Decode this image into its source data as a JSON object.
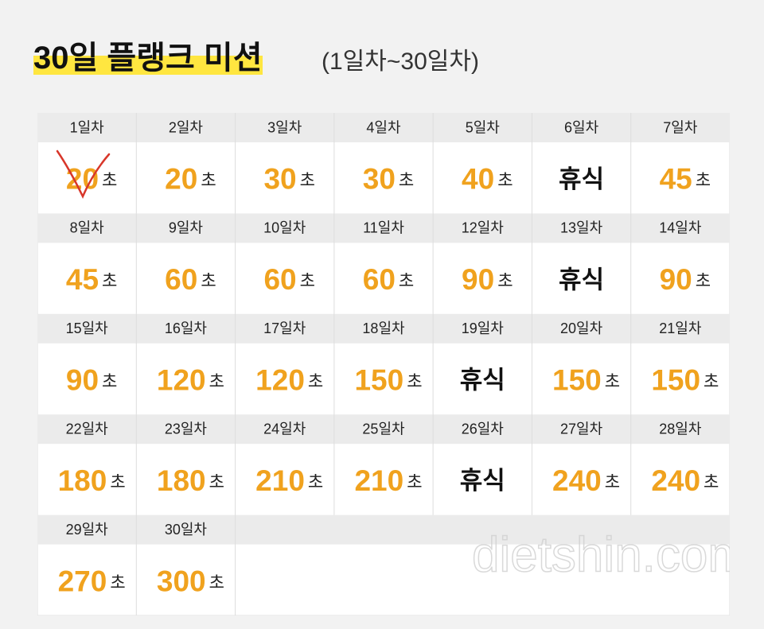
{
  "header": {
    "title": "30일 플랭크 미션",
    "subtitle": "(1일차~30일차)"
  },
  "unit": "초",
  "days": [
    {
      "day": "1일차",
      "amount": 20
    },
    {
      "day": "2일차",
      "amount": 20
    },
    {
      "day": "3일차",
      "amount": 30
    },
    {
      "day": "4일차",
      "amount": 30
    },
    {
      "day": "5일차",
      "amount": 40
    },
    {
      "day": "6일차",
      "rest": "휴식"
    },
    {
      "day": "7일차",
      "amount": 45
    },
    {
      "day": "8일차",
      "amount": 45
    },
    {
      "day": "9일차",
      "amount": 60
    },
    {
      "day": "10일차",
      "amount": 60
    },
    {
      "day": "11일차",
      "amount": 60
    },
    {
      "day": "12일차",
      "amount": 90
    },
    {
      "day": "13일차",
      "rest": "휴식"
    },
    {
      "day": "14일차",
      "amount": 90
    },
    {
      "day": "15일차",
      "amount": 90
    },
    {
      "day": "16일차",
      "amount": 120
    },
    {
      "day": "17일차",
      "amount": 120
    },
    {
      "day": "18일차",
      "amount": 150
    },
    {
      "day": "19일차",
      "rest": "휴식"
    },
    {
      "day": "20일차",
      "amount": 150
    },
    {
      "day": "21일차",
      "amount": 150
    },
    {
      "day": "22일차",
      "amount": 180
    },
    {
      "day": "23일차",
      "amount": 180
    },
    {
      "day": "24일차",
      "amount": 210
    },
    {
      "day": "25일차",
      "amount": 210
    },
    {
      "day": "26일차",
      "rest": "휴식"
    },
    {
      "day": "27일차",
      "amount": 240
    },
    {
      "day": "28일차",
      "amount": 240
    },
    {
      "day": "29일차",
      "amount": 270
    },
    {
      "day": "30일차",
      "amount": 300
    }
  ],
  "watermark": "dietshin.com"
}
